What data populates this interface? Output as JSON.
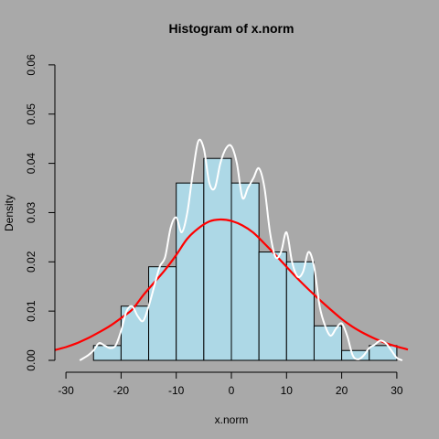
{
  "chart_data": {
    "type": "bar",
    "title": "Histogram of x.norm",
    "xlabel": "x.norm",
    "ylabel": "Density",
    "xlim": [
      -30,
      30
    ],
    "ylim": [
      0,
      0.06
    ],
    "x_ticks": [
      "-30",
      "-20",
      "-10",
      "0",
      "10",
      "20",
      "30"
    ],
    "y_ticks": [
      "0.00",
      "0.01",
      "0.02",
      "0.03",
      "0.04",
      "0.05",
      "0.06"
    ],
    "bins": [
      {
        "x0": -25,
        "x1": -20,
        "density": 0.003
      },
      {
        "x0": -20,
        "x1": -15,
        "density": 0.011
      },
      {
        "x0": -15,
        "x1": -10,
        "density": 0.019
      },
      {
        "x0": -10,
        "x1": -5,
        "density": 0.036
      },
      {
        "x0": -5,
        "x1": 0,
        "density": 0.041
      },
      {
        "x0": 0,
        "x1": 5,
        "density": 0.036
      },
      {
        "x0": 5,
        "x1": 10,
        "density": 0.022
      },
      {
        "x0": 10,
        "x1": 15,
        "density": 0.02
      },
      {
        "x0": 15,
        "x1": 20,
        "density": 0.007
      },
      {
        "x0": 20,
        "x1": 25,
        "density": 0.002
      },
      {
        "x0": 25,
        "x1": 30,
        "density": 0.003
      }
    ],
    "bar_color": "#ADD8E6",
    "series": [
      {
        "type": "line",
        "color": "#FF0000",
        "x": [
          -32,
          -30,
          -28,
          -26,
          -24,
          -22,
          -20,
          -18,
          -16,
          -14,
          -12,
          -10,
          -8,
          -6,
          -4,
          -2,
          0,
          2,
          4,
          6,
          8,
          10,
          12,
          14,
          16,
          18,
          20,
          22,
          24,
          26,
          28,
          30,
          32
        ],
        "y": [
          0.0021,
          0.0027,
          0.0035,
          0.0045,
          0.0057,
          0.007,
          0.0086,
          0.0103,
          0.0132,
          0.0158,
          0.0184,
          0.0214,
          0.0247,
          0.0268,
          0.0282,
          0.0286,
          0.0283,
          0.0274,
          0.0259,
          0.0237,
          0.0214,
          0.019,
          0.0166,
          0.0144,
          0.0123,
          0.0103,
          0.0084,
          0.0068,
          0.0055,
          0.0044,
          0.0035,
          0.0028,
          0.0022
        ]
      },
      {
        "type": "line",
        "color": "#FFFFFF",
        "x": [
          -27.5,
          -26,
          -25,
          -24,
          -23,
          -22,
          -21,
          -20,
          -19,
          -18,
          -17,
          -16,
          -15,
          -14,
          -13,
          -12,
          -11,
          -10,
          -9,
          -8,
          -7,
          -6,
          -5,
          -4,
          -3,
          -2,
          -1,
          0,
          1,
          2,
          3,
          4,
          5,
          6,
          7,
          8,
          9,
          10,
          11,
          12,
          13,
          14,
          15,
          16,
          17,
          18,
          19,
          20,
          21,
          22,
          23,
          24,
          25,
          26,
          27,
          28,
          29,
          30,
          31
        ],
        "y": [
          0.0,
          0.001,
          0.002,
          0.0035,
          0.003,
          0.0025,
          0.003,
          0.006,
          0.01,
          0.011,
          0.009,
          0.008,
          0.011,
          0.015,
          0.019,
          0.021,
          0.027,
          0.029,
          0.026,
          0.03,
          0.038,
          0.0445,
          0.043,
          0.036,
          0.035,
          0.04,
          0.043,
          0.0435,
          0.04,
          0.033,
          0.035,
          0.037,
          0.039,
          0.035,
          0.026,
          0.021,
          0.022,
          0.026,
          0.02,
          0.017,
          0.018,
          0.022,
          0.019,
          0.011,
          0.007,
          0.005,
          0.0065,
          0.0075,
          0.005,
          0.001,
          0.0002,
          0.001,
          0.0025,
          0.0032,
          0.004,
          0.0035,
          0.002,
          0.0005,
          0.0
        ]
      }
    ]
  }
}
